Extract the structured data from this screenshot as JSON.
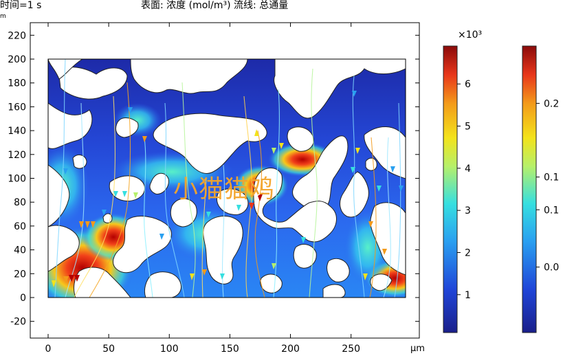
{
  "header": {
    "time_label": "时间=1 s",
    "title": "表面: 浓度 (mol/m³)  流线: 总通量",
    "corner_unit": "m"
  },
  "watermark": "小猫猫鸡",
  "chart_data": [
    {
      "type": "heatmap",
      "title": "表面: 浓度 (mol/m³)  流线: 总通量",
      "x_ticks": [
        0,
        50,
        100,
        150,
        200,
        250
      ],
      "x_unit": "µm",
      "y_ticks": [
        -20,
        0,
        20,
        40,
        60,
        80,
        100,
        120,
        140,
        160,
        180,
        200,
        220
      ],
      "xlim": [
        -15,
        300
      ],
      "ylim": [
        -30,
        230
      ],
      "domain_x": [
        0,
        295
      ],
      "domain_y": [
        0,
        200
      ],
      "grid": false
    },
    {
      "type": "colorbar",
      "name": "浓度",
      "multiplier": "×10³",
      "ticks": [
        1,
        2,
        3,
        4,
        5,
        6
      ],
      "range": [
        0.1,
        6.9
      ],
      "colormap": "rainbow"
    },
    {
      "type": "colorbar",
      "name": "总通量",
      "ticks": [
        "0.0",
        "0.1",
        "0.1",
        "0.2"
      ],
      "tick_values": [
        0.0,
        0.07,
        0.11,
        0.2
      ],
      "range": [
        -0.08,
        0.27
      ],
      "colormap": "rainbow"
    }
  ],
  "colors": {
    "low": "#1e2a9e",
    "mid": "#2fd3e0",
    "high": "#b30000",
    "pore": "#ffffff",
    "watermark": "#f3a52c"
  }
}
